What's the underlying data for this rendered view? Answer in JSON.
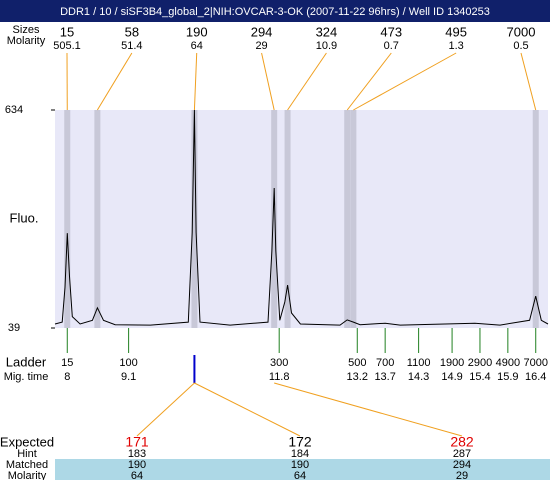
{
  "title": "DDR1 / 10 / siSF3B4_global_2|NIH:OVCAR-3-OK (2007-11-22 96hrs) / Well ID 1340253",
  "chart_data": {
    "type": "electropherogram",
    "y_label": "Fluo.",
    "ylim": [
      39,
      634
    ],
    "yticks": [
      634,
      39
    ],
    "xlim": [
      7.78,
      16.62
    ],
    "trace": {
      "x": [
        7.78,
        7.91,
        7.96,
        8.0,
        8.04,
        8.09,
        8.23,
        8.45,
        8.54,
        8.65,
        8.86,
        9.49,
        10.17,
        10.24,
        10.28,
        10.31,
        10.38,
        10.92,
        11.6,
        11.67,
        11.71,
        11.74,
        11.81,
        11.9,
        11.95,
        12.02,
        12.18,
        12.89,
        13.02,
        13.13,
        13.25,
        13.7,
        13.97,
        15.31,
        15.76,
        16.29,
        16.4,
        16.5,
        16.62
      ],
      "values": [
        50,
        55,
        150,
        298,
        180,
        70,
        50,
        60,
        94,
        60,
        48,
        47,
        55,
        300,
        634,
        300,
        55,
        47,
        55,
        250,
        421,
        250,
        60,
        110,
        156,
        80,
        50,
        47,
        61,
        55,
        48,
        52,
        47,
        52,
        47,
        60,
        126,
        60,
        50
      ]
    },
    "peaks": {
      "sizes_label": "Sizes",
      "molarity_label": "Molarity",
      "sizes": [
        15,
        58,
        190,
        294,
        324,
        473,
        495,
        7000
      ],
      "molarity": [
        505.1,
        51.4,
        64,
        29,
        10.9,
        0.7,
        1.3,
        0.5
      ],
      "x": [
        8.0,
        8.54,
        10.28,
        11.71,
        11.95,
        13.02,
        13.13,
        16.4
      ],
      "band_color": "#c8c8d8",
      "line_color": "#f0a020"
    },
    "ladder": {
      "label": "Ladder",
      "time_label": "Mig. time",
      "sizes": [
        15,
        100,
        300,
        500,
        700,
        1100,
        1900,
        2900,
        4900,
        7000
      ],
      "x": [
        8,
        9.1,
        11.8,
        13.2,
        13.7,
        14.3,
        14.9,
        15.4,
        15.9,
        16.4
      ],
      "color": "#208020"
    }
  },
  "matches": {
    "row_labels": [
      "Expected",
      "Hint",
      "Matched",
      "Molarity"
    ],
    "expected": [
      171,
      172,
      282
    ],
    "expected_colors": [
      "#e00000",
      "#000000",
      "#e00000"
    ],
    "hint": [
      183,
      184,
      287
    ],
    "matched": [
      190,
      190,
      294
    ],
    "molarity": [
      64,
      64,
      29
    ]
  }
}
